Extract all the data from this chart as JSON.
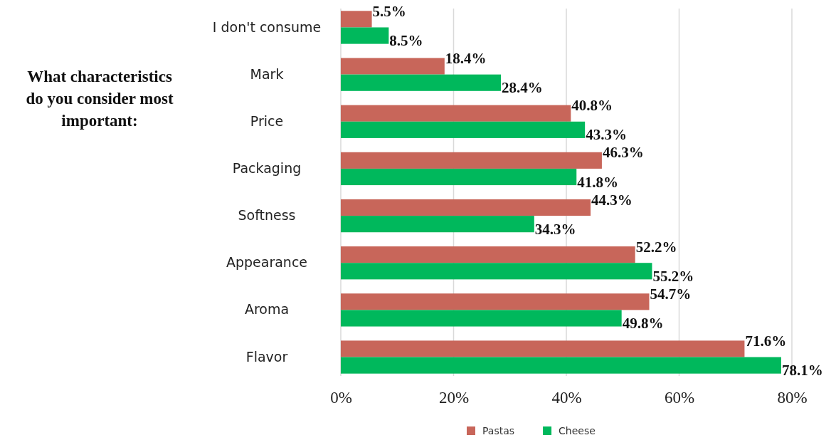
{
  "chart_data": {
    "type": "bar",
    "orientation": "horizontal",
    "title": "What characteristics do you consider most important:",
    "categories": [
      "I don't consume",
      "Mark",
      "Price",
      "Packaging",
      "Softness",
      "Appearance",
      "Aroma",
      "Flavor"
    ],
    "series": [
      {
        "name": "Pastas",
        "color": "#c8665a",
        "values": [
          5.5,
          18.4,
          40.8,
          46.3,
          44.3,
          52.2,
          54.7,
          71.6
        ],
        "value_labels": [
          "5.5%",
          "18.4%",
          "40.8%",
          "46.3%",
          "44.3%",
          "52.2%",
          "54.7%",
          "71.6%"
        ]
      },
      {
        "name": "Cheese",
        "color": "#00b85c",
        "values": [
          8.5,
          28.4,
          43.3,
          41.8,
          34.3,
          55.2,
          49.8,
          78.1
        ],
        "value_labels": [
          "8.5%",
          "28.4%",
          "43.3%",
          "41.8%",
          "34.3%",
          "55.2%",
          "49.8%",
          "78.1%"
        ]
      }
    ],
    "xlim": [
      0,
      80
    ],
    "xticks": [
      {
        "value": 0,
        "label": "0%"
      },
      {
        "value": 20,
        "label": "20%"
      },
      {
        "value": 40,
        "label": "40%"
      },
      {
        "value": 60,
        "label": "60%"
      },
      {
        "value": 80,
        "label": "80%"
      }
    ],
    "grid": "x",
    "legend": "bottom"
  }
}
